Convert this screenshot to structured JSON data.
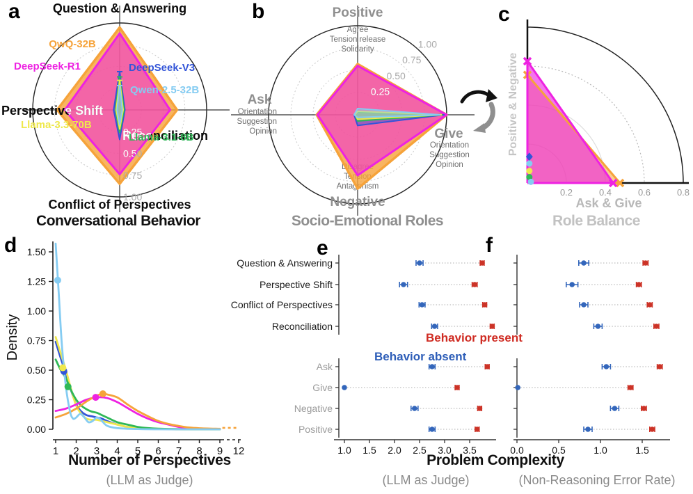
{
  "shared": {
    "xlabel": "Problem Complexity",
    "legend_present": "Behavior present",
    "legend_absent": "Behavior absent",
    "colors": {
      "present": "#CC3327",
      "absent": "#3366BB"
    }
  },
  "models": [
    {
      "name": "QwQ-32B",
      "color": "#F6A33A"
    },
    {
      "name": "DeepSeek-R1",
      "color": "#EE22E2"
    },
    {
      "name": "DeepSeek-V3",
      "color": "#3355D8"
    },
    {
      "name": "Qwen-2.5-32B",
      "color": "#85CCF2"
    },
    {
      "name": "Llama-3.3-70B",
      "color": "#EFE84C"
    },
    {
      "name": "Llama-3.1-8B",
      "color": "#2FB857"
    }
  ],
  "chart_data": [
    {
      "panel": "a",
      "type": "radar",
      "title": "Conversational Behavior",
      "axes": [
        "Question & Answering",
        "Reconciliation",
        "Conflict of Perspectives",
        "Perspective Shift"
      ],
      "ticks": [
        "0.25",
        "0.50",
        "0.75",
        "1.00"
      ],
      "series": [
        {
          "name": "QwQ-32B",
          "values": [
            0.95,
            0.66,
            0.85,
            0.72
          ]
        },
        {
          "name": "DeepSeek-R1",
          "values": [
            0.88,
            0.58,
            0.74,
            0.63
          ]
        },
        {
          "name": "DeepSeek-V3",
          "values": [
            0.44,
            0.06,
            0.34,
            0.07
          ]
        },
        {
          "name": "Llama-3.1-8B",
          "values": [
            0.38,
            0.05,
            0.26,
            0.05
          ]
        },
        {
          "name": "Llama-3.3-70B",
          "values": [
            0.34,
            0.04,
            0.22,
            0.04
          ]
        },
        {
          "name": "Qwen-2.5-32B",
          "values": [
            0.28,
            0.03,
            0.17,
            0.03
          ]
        }
      ]
    },
    {
      "panel": "b",
      "type": "radar",
      "title": "Socio-Emotional Roles",
      "axes": [
        {
          "label": "Positive",
          "sub": [
            "Agree",
            "Tension release",
            "Solidarity"
          ]
        },
        {
          "label": "Give",
          "sub": [
            "Orientation",
            "Suggestion",
            "Opinion"
          ]
        },
        {
          "label": "Negative",
          "sub": [
            "Disagree",
            "Tension",
            "Antagonism"
          ]
        },
        {
          "label": "Ask",
          "sub": [
            "Orientation",
            "Suggestion",
            "Opinion"
          ]
        }
      ],
      "ticks": [
        "0.25",
        "0.50",
        "0.75",
        "1.00"
      ],
      "series": [
        {
          "name": "QwQ-32B",
          "values": [
            0.57,
            1.0,
            0.83,
            0.46
          ]
        },
        {
          "name": "DeepSeek-R1",
          "values": [
            0.55,
            1.0,
            0.68,
            0.45
          ]
        },
        {
          "name": "DeepSeek-V3",
          "values": [
            0.03,
            0.97,
            0.12,
            0.04
          ]
        },
        {
          "name": "Llama-3.1-8B",
          "values": [
            0.03,
            0.95,
            0.07,
            0.03
          ]
        },
        {
          "name": "Llama-3.3-70B",
          "values": [
            0.04,
            0.94,
            0.05,
            0.03
          ]
        },
        {
          "name": "Qwen-2.5-32B",
          "values": [
            0.07,
            0.92,
            0.03,
            0.04
          ]
        }
      ]
    },
    {
      "panel": "c",
      "type": "scatter",
      "title": "Role Balance",
      "xlabel": "Ask & Give",
      "ylabel": "Positive & Negative",
      "xticks": [
        "0.2",
        "0.4",
        "0.6",
        "0.8"
      ],
      "arc_radii": [
        0.2,
        0.4,
        0.6,
        0.8
      ],
      "series": [
        {
          "name": "DeepSeek-R1",
          "line": [
            [
              0,
              0.625
            ],
            [
              0.44,
              0
            ]
          ],
          "marker": "x",
          "filled": true
        },
        {
          "name": "QwQ-32B",
          "line": [
            [
              0,
              0.555
            ],
            [
              0.475,
              0
            ]
          ],
          "marker": "x",
          "filled": false
        },
        {
          "name": "DeepSeek-V3",
          "point": [
            0.01,
            0.135
          ],
          "marker": "diamond"
        },
        {
          "name": "Qwen-2.5-32B",
          "point": [
            0.01,
            0.1
          ],
          "marker": "circle"
        },
        {
          "name": "Llama-3.3-70B",
          "point": [
            0.01,
            0.062
          ],
          "marker": "circle"
        },
        {
          "name": "Llama-3.1-8B",
          "point": [
            0.01,
            0.03
          ],
          "marker": "circle"
        },
        {
          "name": "Qwen-2.5-32B",
          "point": [
            0.018,
            0.006
          ],
          "marker": "circle"
        }
      ]
    },
    {
      "panel": "d",
      "type": "line",
      "title": "Number of Perspectives",
      "xlabel_note": "(LLM as Judge)",
      "ylabel": "Density",
      "xticks": [
        "1",
        "2",
        "3",
        "4",
        "5",
        "6",
        "7",
        "8",
        "9",
        "12"
      ],
      "yticks": [
        "0.00",
        "0.25",
        "0.50",
        "0.75",
        "1.00",
        "1.25",
        "1.50"
      ],
      "xlim": [
        1,
        12
      ],
      "ylim": [
        0,
        1.6
      ],
      "series": [
        {
          "name": "DeepSeek-V3",
          "marker": [
            1.4,
            0.49
          ],
          "points": [
            [
              1,
              0.74
            ],
            [
              1.25,
              0.6
            ],
            [
              1.5,
              0.47
            ],
            [
              1.75,
              0.33
            ],
            [
              2,
              0.21
            ],
            [
              2.25,
              0.15
            ],
            [
              2.5,
              0.12
            ],
            [
              2.75,
              0.11
            ],
            [
              3,
              0.1
            ],
            [
              3.25,
              0.09
            ],
            [
              3.5,
              0.07
            ],
            [
              4,
              0.04
            ],
            [
              4.5,
              0.02
            ],
            [
              5,
              0.01
            ],
            [
              6,
              0.003
            ],
            [
              7,
              0.001
            ],
            [
              8,
              0
            ],
            [
              9,
              0
            ]
          ]
        },
        {
          "name": "Llama-3.3-70B",
          "marker": [
            1.35,
            0.52
          ],
          "points": [
            [
              1,
              0.78
            ],
            [
              1.25,
              0.64
            ],
            [
              1.5,
              0.5
            ],
            [
              1.75,
              0.34
            ],
            [
              2,
              0.2
            ],
            [
              2.25,
              0.13
            ],
            [
              2.5,
              0.09
            ],
            [
              2.75,
              0.08
            ],
            [
              3,
              0.08
            ],
            [
              3.5,
              0.06
            ],
            [
              4,
              0.04
            ],
            [
              4.5,
              0.02
            ],
            [
              5,
              0.01
            ],
            [
              6,
              0.004
            ],
            [
              7,
              0.001
            ],
            [
              8,
              0
            ],
            [
              9,
              0
            ]
          ]
        },
        {
          "name": "Llama-3.1-8B",
          "marker": [
            1.6,
            0.36
          ],
          "points": [
            [
              1,
              0.59
            ],
            [
              1.25,
              0.5
            ],
            [
              1.5,
              0.43
            ],
            [
              1.75,
              0.33
            ],
            [
              2,
              0.25
            ],
            [
              2.25,
              0.2
            ],
            [
              2.5,
              0.17
            ],
            [
              2.75,
              0.15
            ],
            [
              3,
              0.14
            ],
            [
              3.25,
              0.12
            ],
            [
              3.5,
              0.1
            ],
            [
              4,
              0.06
            ],
            [
              4.5,
              0.04
            ],
            [
              5,
              0.02
            ],
            [
              5.5,
              0.01
            ],
            [
              6,
              0.005
            ],
            [
              7,
              0.001
            ],
            [
              8,
              0
            ],
            [
              9,
              0
            ]
          ]
        },
        {
          "name": "DeepSeek-R1",
          "marker": [
            2.95,
            0.27
          ],
          "points": [
            [
              1,
              0.155
            ],
            [
              1.5,
              0.175
            ],
            [
              2,
              0.21
            ],
            [
              2.5,
              0.25
            ],
            [
              3,
              0.27
            ],
            [
              3.5,
              0.265
            ],
            [
              4,
              0.23
            ],
            [
              4.5,
              0.18
            ],
            [
              5,
              0.13
            ],
            [
              5.5,
              0.09
            ],
            [
              6,
              0.06
            ],
            [
              6.5,
              0.04
            ],
            [
              7,
              0.02
            ],
            [
              7.5,
              0.012
            ],
            [
              8,
              0.006
            ],
            [
              9,
              0.002
            ]
          ]
        },
        {
          "name": "QwQ-32B",
          "marker": [
            3.3,
            0.3
          ],
          "dashed_tail": [
            9.4,
            12
          ],
          "points": [
            [
              1,
              0.1
            ],
            [
              1.5,
              0.13
            ],
            [
              2,
              0.175
            ],
            [
              2.5,
              0.235
            ],
            [
              3,
              0.285
            ],
            [
              3.3,
              0.3
            ],
            [
              3.5,
              0.295
            ],
            [
              4,
              0.27
            ],
            [
              4.5,
              0.21
            ],
            [
              5,
              0.155
            ],
            [
              5.5,
              0.11
            ],
            [
              6,
              0.07
            ],
            [
              6.5,
              0.045
            ],
            [
              7,
              0.028
            ],
            [
              7.5,
              0.015
            ],
            [
              8,
              0.009
            ],
            [
              9,
              0.004
            ]
          ]
        },
        {
          "name": "Qwen-2.5-32B",
          "marker": [
            1.1,
            1.26
          ],
          "points": [
            [
              1,
              1.57
            ],
            [
              1.15,
              1.15
            ],
            [
              1.3,
              0.72
            ],
            [
              1.5,
              0.36
            ],
            [
              1.7,
              0.15
            ],
            [
              1.85,
              0.09
            ],
            [
              2,
              0.1
            ],
            [
              2.2,
              0.13
            ],
            [
              2.4,
              0.1
            ],
            [
              2.6,
              0.06
            ],
            [
              2.8,
              0.07
            ],
            [
              3,
              0.1
            ],
            [
              3.2,
              0.08
            ],
            [
              3.5,
              0.03
            ],
            [
              4,
              0.01
            ],
            [
              5,
              0.002
            ],
            [
              6,
              0
            ],
            [
              7,
              0
            ],
            [
              8,
              0
            ],
            [
              9,
              0
            ]
          ]
        }
      ]
    },
    {
      "panel": "e",
      "type": "dumbbell",
      "xlabel_note": "(LLM as Judge)",
      "xticks": [
        "1.0",
        "1.5",
        "2.0",
        "2.5",
        "3.0",
        "3.5"
      ],
      "rows": [
        {
          "label": "Question & Answering",
          "group": "behavior",
          "absent": 2.5,
          "absent_err": 0.07,
          "present": 3.75,
          "present_err": 0.04
        },
        {
          "label": "Perspective Shift",
          "group": "behavior",
          "absent": 2.18,
          "absent_err": 0.08,
          "present": 3.6,
          "present_err": 0.05
        },
        {
          "label": "Conflict of Perspectives",
          "group": "behavior",
          "absent": 2.55,
          "absent_err": 0.06,
          "present": 3.8,
          "present_err": 0.04
        },
        {
          "label": "Reconciliation",
          "group": "behavior",
          "absent": 2.8,
          "absent_err": 0.06,
          "present": 3.95,
          "present_err": 0.04
        },
        {
          "label": "Ask",
          "group": "role",
          "absent": 2.75,
          "absent_err": 0.06,
          "present": 3.85,
          "present_err": 0.04
        },
        {
          "label": "Give",
          "group": "role",
          "absent": 1.0,
          "absent_err": 0.0,
          "present": 3.25,
          "present_err": 0.04
        },
        {
          "label": "Negative",
          "group": "role",
          "absent": 2.4,
          "absent_err": 0.07,
          "present": 3.7,
          "present_err": 0.04
        },
        {
          "label": "Positive",
          "group": "role",
          "absent": 2.75,
          "absent_err": 0.06,
          "present": 3.65,
          "present_err": 0.04
        }
      ]
    },
    {
      "panel": "f",
      "type": "dumbbell",
      "xlabel_note": "(Non-Reasoning Error Rate)",
      "xticks": [
        "0.0",
        "0.5",
        "1.0",
        "1.5"
      ],
      "rows": [
        {
          "label": "Question & Answering",
          "group": "behavior",
          "absent": 0.8,
          "absent_err": 0.06,
          "present": 1.54,
          "present_err": 0.03
        },
        {
          "label": "Perspective Shift",
          "group": "behavior",
          "absent": 0.66,
          "absent_err": 0.07,
          "present": 1.46,
          "present_err": 0.03
        },
        {
          "label": "Conflict of Perspectives",
          "group": "behavior",
          "absent": 0.8,
          "absent_err": 0.05,
          "present": 1.59,
          "present_err": 0.03
        },
        {
          "label": "Reconciliation",
          "group": "behavior",
          "absent": 0.97,
          "absent_err": 0.05,
          "present": 1.67,
          "present_err": 0.03
        },
        {
          "label": "Ask",
          "group": "role",
          "absent": 1.07,
          "absent_err": 0.05,
          "present": 1.71,
          "present_err": 0.03
        },
        {
          "label": "Give",
          "group": "role",
          "absent": 0.01,
          "absent_err": 0.0,
          "present": 1.36,
          "present_err": 0.03
        },
        {
          "label": "Negative",
          "group": "role",
          "absent": 1.17,
          "absent_err": 0.05,
          "present": 1.52,
          "present_err": 0.03
        },
        {
          "label": "Positive",
          "group": "role",
          "absent": 0.85,
          "absent_err": 0.05,
          "present": 1.62,
          "present_err": 0.03
        }
      ]
    }
  ]
}
